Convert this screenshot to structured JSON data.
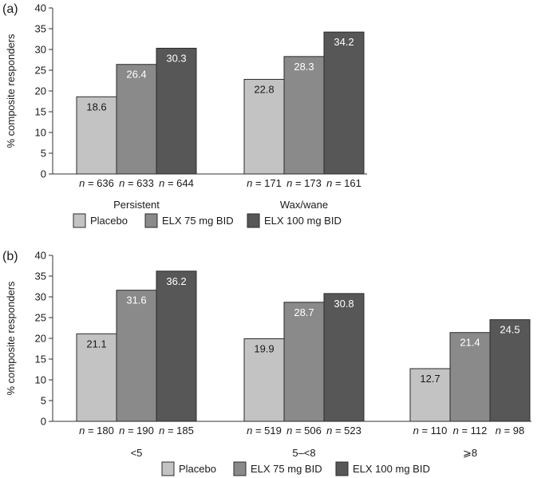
{
  "chart_data": [
    {
      "type": "bar",
      "panel_label": "(a)",
      "ylabel": "% composite responders",
      "ylim": [
        0,
        40
      ],
      "yticks": [
        0,
        5,
        10,
        15,
        20,
        25,
        30,
        35,
        40
      ],
      "categories": [
        "Persistent",
        "Wax/wane"
      ],
      "n_prefix": "n",
      "series": [
        {
          "name": "Placebo",
          "color": "#c3c3c3",
          "values": [
            18.6,
            22.8
          ],
          "value_labels": [
            "18.6",
            "22.8"
          ],
          "n": [
            "= 636",
            "= 171"
          ]
        },
        {
          "name": "ELX 75 mg BID",
          "color": "#8a8a8a",
          "values": [
            26.4,
            28.3
          ],
          "value_labels": [
            "26.4",
            "28.3"
          ],
          "n": [
            "= 633",
            "= 173"
          ]
        },
        {
          "name": "ELX 100 mg BID",
          "color": "#575757",
          "values": [
            30.3,
            34.2
          ],
          "value_labels": [
            "30.3",
            "34.2"
          ],
          "n": [
            "= 644",
            "= 161"
          ]
        }
      ],
      "legend": "bottom"
    },
    {
      "type": "bar",
      "panel_label": "(b)",
      "ylabel": "% composite responders",
      "ylim": [
        0,
        40
      ],
      "yticks": [
        0,
        5,
        10,
        15,
        20,
        25,
        30,
        35,
        40
      ],
      "categories": [
        "<5",
        "5–<8",
        "⩾8"
      ],
      "n_prefix": "n",
      "series": [
        {
          "name": "Placebo",
          "color": "#c3c3c3",
          "values": [
            21.1,
            19.9,
            12.7
          ],
          "value_labels": [
            "21.1",
            "19.9",
            "12.7"
          ],
          "n": [
            "= 180",
            "= 519",
            "= 110"
          ]
        },
        {
          "name": "ELX 75 mg BID",
          "color": "#8a8a8a",
          "values": [
            31.6,
            28.7,
            21.4
          ],
          "value_labels": [
            "31.6",
            "28.7",
            "21.4"
          ],
          "n": [
            "= 190",
            "= 506",
            "= 112"
          ]
        },
        {
          "name": "ELX 100 mg BID",
          "color": "#575757",
          "values": [
            36.2,
            30.8,
            24.5
          ],
          "value_labels": [
            "36.2",
            "30.8",
            "24.5"
          ],
          "n": [
            "= 185",
            "= 523",
            "= 98"
          ]
        }
      ],
      "legend": "bottom"
    }
  ]
}
